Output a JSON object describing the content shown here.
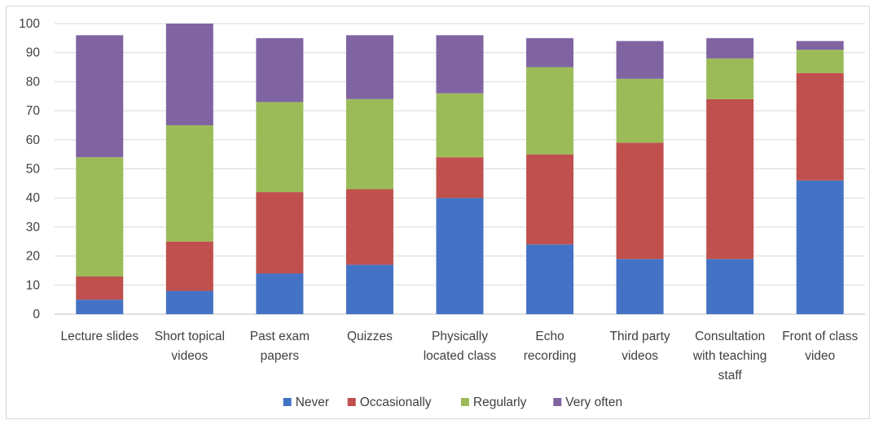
{
  "chart_data": {
    "type": "bar",
    "stacked": true,
    "categories": [
      [
        "Lecture slides"
      ],
      [
        "Short topical",
        "videos"
      ],
      [
        "Past exam",
        "papers"
      ],
      [
        "Quizzes"
      ],
      [
        "Physically",
        "located class"
      ],
      [
        "Echo",
        "recording"
      ],
      [
        "Third party",
        "videos"
      ],
      [
        "Consultation",
        "with teaching",
        "staff"
      ],
      [
        "Front of class",
        "video"
      ]
    ],
    "series": [
      {
        "name": "Never",
        "color": "#4472c4",
        "values": [
          5,
          8,
          14,
          17,
          40,
          24,
          19,
          19,
          46
        ]
      },
      {
        "name": "Occasionally",
        "color": "#c0504d",
        "values": [
          8,
          17,
          28,
          26,
          14,
          31,
          40,
          55,
          37
        ]
      },
      {
        "name": "Regularly",
        "color": "#9bbb59",
        "values": [
          41,
          40,
          31,
          31,
          22,
          30,
          22,
          14,
          8
        ]
      },
      {
        "name": "Very often",
        "color": "#8064a2",
        "values": [
          42,
          35,
          22,
          22,
          20,
          10,
          13,
          7,
          3
        ]
      }
    ],
    "ylim": [
      0,
      100
    ],
    "yticks": [
      "0",
      "10",
      "20",
      "30",
      "40",
      "50",
      "60",
      "70",
      "80",
      "90",
      "100"
    ],
    "grid": true,
    "legend_position": "bottom"
  }
}
